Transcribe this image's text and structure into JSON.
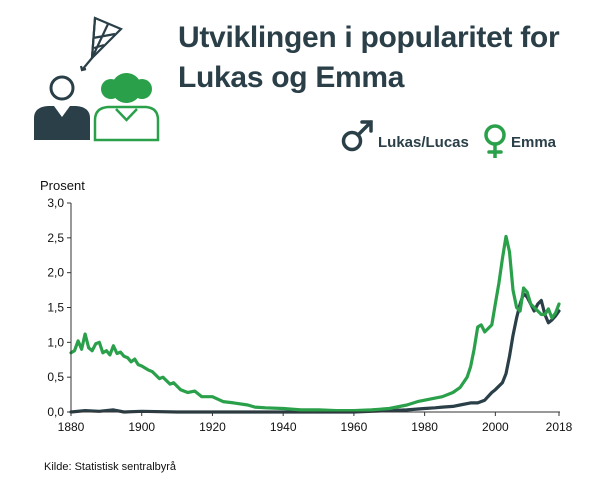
{
  "title": "Utviklingen i popularitet for Lukas og Emma",
  "source": "Kilde: Statistisk sentralbyrå",
  "icons": {
    "illustration": "children-with-kite-icon",
    "male": "male-symbol-icon",
    "female": "female-symbol-icon"
  },
  "colors": {
    "lukas": "#2a3f48",
    "emma": "#2aa04a",
    "text": "#2a3f48",
    "axis": "#333333"
  },
  "chart_data": {
    "type": "line",
    "ylabel": "Prosent",
    "xlabel": "",
    "xlim": [
      1880,
      2018
    ],
    "ylim": [
      0,
      3
    ],
    "grid": false,
    "legend_position": "top-right",
    "x_ticks": [
      1880,
      1900,
      1920,
      1940,
      1960,
      1980,
      2000,
      2018
    ],
    "y_ticks": [
      "0,0",
      "0,5",
      "1,0",
      "1,5",
      "2,0",
      "2,5",
      "3,0"
    ],
    "series": [
      {
        "name": "Lukas/Lucas",
        "color": "#2a3f48",
        "points": [
          [
            1880,
            0.0
          ],
          [
            1884,
            0.02
          ],
          [
            1888,
            0.01
          ],
          [
            1892,
            0.03
          ],
          [
            1895,
            0.0
          ],
          [
            1900,
            0.01
          ],
          [
            1910,
            0.0
          ],
          [
            1920,
            0.0
          ],
          [
            1930,
            0.0
          ],
          [
            1940,
            0.0
          ],
          [
            1950,
            0.0
          ],
          [
            1960,
            0.0
          ],
          [
            1965,
            0.01
          ],
          [
            1970,
            0.02
          ],
          [
            1975,
            0.03
          ],
          [
            1980,
            0.05
          ],
          [
            1983,
            0.06
          ],
          [
            1985,
            0.07
          ],
          [
            1988,
            0.08
          ],
          [
            1990,
            0.1
          ],
          [
            1993,
            0.13
          ],
          [
            1995,
            0.13
          ],
          [
            1997,
            0.17
          ],
          [
            1999,
            0.28
          ],
          [
            2000,
            0.32
          ],
          [
            2002,
            0.42
          ],
          [
            2003,
            0.55
          ],
          [
            2004,
            0.8
          ],
          [
            2005,
            1.1
          ],
          [
            2006,
            1.35
          ],
          [
            2007,
            1.55
          ],
          [
            2008,
            1.7
          ],
          [
            2009,
            1.65
          ],
          [
            2010,
            1.55
          ],
          [
            2011,
            1.45
          ],
          [
            2012,
            1.55
          ],
          [
            2013,
            1.6
          ],
          [
            2014,
            1.4
          ],
          [
            2015,
            1.28
          ],
          [
            2016,
            1.32
          ],
          [
            2017,
            1.38
          ],
          [
            2018,
            1.45
          ]
        ]
      },
      {
        "name": "Emma",
        "color": "#2aa04a",
        "points": [
          [
            1880,
            0.85
          ],
          [
            1881,
            0.88
          ],
          [
            1882,
            1.02
          ],
          [
            1883,
            0.9
          ],
          [
            1884,
            1.12
          ],
          [
            1885,
            0.92
          ],
          [
            1886,
            0.88
          ],
          [
            1887,
            0.98
          ],
          [
            1888,
            1.0
          ],
          [
            1889,
            0.85
          ],
          [
            1890,
            0.88
          ],
          [
            1891,
            0.82
          ],
          [
            1892,
            0.95
          ],
          [
            1893,
            0.84
          ],
          [
            1894,
            0.86
          ],
          [
            1895,
            0.8
          ],
          [
            1896,
            0.78
          ],
          [
            1897,
            0.72
          ],
          [
            1898,
            0.76
          ],
          [
            1899,
            0.68
          ],
          [
            1900,
            0.66
          ],
          [
            1902,
            0.6
          ],
          [
            1903,
            0.58
          ],
          [
            1905,
            0.48
          ],
          [
            1906,
            0.5
          ],
          [
            1908,
            0.4
          ],
          [
            1909,
            0.42
          ],
          [
            1911,
            0.32
          ],
          [
            1913,
            0.28
          ],
          [
            1915,
            0.3
          ],
          [
            1917,
            0.22
          ],
          [
            1920,
            0.22
          ],
          [
            1923,
            0.15
          ],
          [
            1926,
            0.13
          ],
          [
            1930,
            0.1
          ],
          [
            1932,
            0.07
          ],
          [
            1935,
            0.06
          ],
          [
            1940,
            0.05
          ],
          [
            1945,
            0.03
          ],
          [
            1950,
            0.03
          ],
          [
            1955,
            0.02
          ],
          [
            1960,
            0.02
          ],
          [
            1965,
            0.03
          ],
          [
            1970,
            0.05
          ],
          [
            1975,
            0.1
          ],
          [
            1978,
            0.15
          ],
          [
            1980,
            0.17
          ],
          [
            1983,
            0.2
          ],
          [
            1985,
            0.22
          ],
          [
            1988,
            0.28
          ],
          [
            1990,
            0.35
          ],
          [
            1992,
            0.5
          ],
          [
            1993,
            0.65
          ],
          [
            1994,
            0.9
          ],
          [
            1995,
            1.22
          ],
          [
            1996,
            1.25
          ],
          [
            1997,
            1.15
          ],
          [
            1998,
            1.2
          ],
          [
            1999,
            1.25
          ],
          [
            2000,
            1.55
          ],
          [
            2001,
            1.85
          ],
          [
            2002,
            2.2
          ],
          [
            2003,
            2.52
          ],
          [
            2004,
            2.3
          ],
          [
            2005,
            1.75
          ],
          [
            2006,
            1.5
          ],
          [
            2007,
            1.45
          ],
          [
            2008,
            1.78
          ],
          [
            2009,
            1.72
          ],
          [
            2010,
            1.55
          ],
          [
            2011,
            1.5
          ],
          [
            2012,
            1.45
          ],
          [
            2013,
            1.4
          ],
          [
            2014,
            1.4
          ],
          [
            2015,
            1.48
          ],
          [
            2016,
            1.35
          ],
          [
            2017,
            1.42
          ],
          [
            2018,
            1.55
          ]
        ]
      }
    ]
  }
}
